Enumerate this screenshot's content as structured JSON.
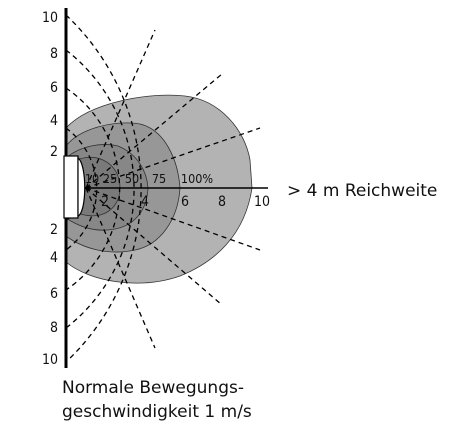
{
  "y_ticks_top": [
    "10",
    "8",
    "6",
    "4",
    "2"
  ],
  "y_ticks_bottom": [
    "2",
    "4",
    "6",
    "8",
    "10"
  ],
  "x_ticks": [
    "2",
    "4",
    "6",
    "8",
    "10"
  ],
  "zone_percent_labels": [
    "10",
    "25",
    "50",
    "75",
    "100%"
  ],
  "range_label": "> 4 m Reichweite",
  "caption_line1": "Normale Bewegungs-",
  "caption_line2": "geschwindigkeit 1 m/s",
  "colors": {
    "zone_outer": "#b3b3b3",
    "zone_mid": "#979797",
    "zone_inner": "#878787",
    "zone_core": "#7a7a7a",
    "lines": "#000000",
    "sensor": "#ffffff"
  }
}
